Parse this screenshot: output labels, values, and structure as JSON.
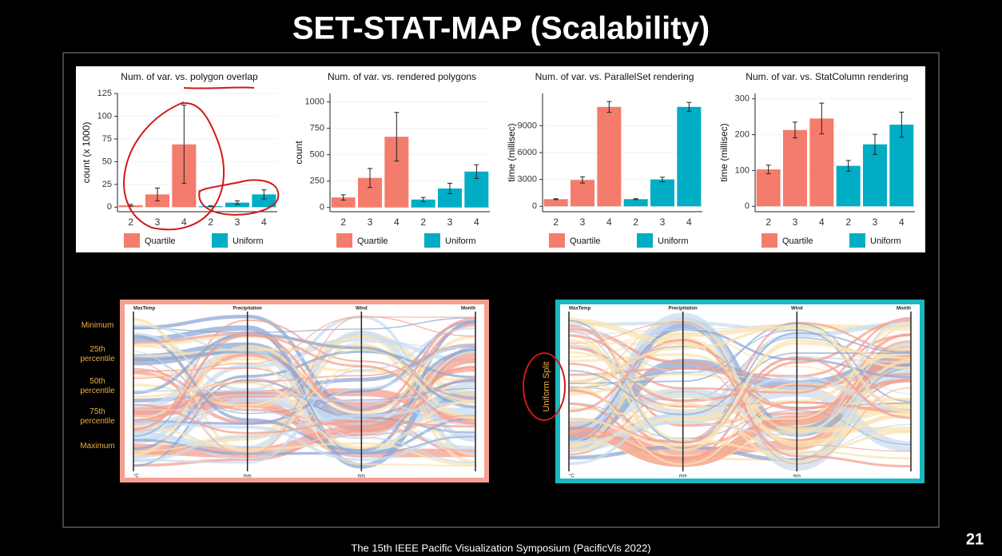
{
  "title": "SET-STAT-MAP (Scalability)",
  "footer": "The 15th IEEE Pacific Visualization Symposium (PacificVis 2022)",
  "page_number": "21",
  "chart_data": [
    {
      "type": "bar",
      "title": "Num. of var. vs. polygon overlap",
      "ylabel": "count (x 1000)",
      "categories": [
        "2",
        "3",
        "4"
      ],
      "ylim": [
        -5,
        125
      ],
      "yticks": [
        0,
        25,
        50,
        75,
        100,
        125
      ],
      "series": [
        {
          "name": "Quartile",
          "color": "#f47c6c",
          "values": [
            2,
            14,
            69
          ],
          "errors": [
            1,
            7,
            43
          ]
        },
        {
          "name": "Uniform",
          "color": "#00adc4",
          "values": [
            1,
            5,
            14
          ],
          "errors": [
            0.5,
            2,
            5
          ]
        }
      ]
    },
    {
      "type": "bar",
      "title": "Num. of var. vs. rendered polygons",
      "ylabel": "count",
      "categories": [
        "2",
        "3",
        "4"
      ],
      "ylim": [
        -40,
        1080
      ],
      "yticks": [
        0,
        250,
        500,
        750,
        1000
      ],
      "series": [
        {
          "name": "Quartile",
          "color": "#f47c6c",
          "values": [
            95,
            280,
            670
          ],
          "errors": [
            25,
            90,
            230
          ]
        },
        {
          "name": "Uniform",
          "color": "#00adc4",
          "values": [
            75,
            180,
            340
          ],
          "errors": [
            20,
            50,
            65
          ]
        }
      ]
    },
    {
      "type": "bar",
      "title": "Num. of var. vs. ParallelSet rendering",
      "ylabel": "time (millisec)",
      "categories": [
        "2",
        "3",
        "4"
      ],
      "ylim": [
        -600,
        12600
      ],
      "yticks": [
        0,
        3000,
        6000,
        9000
      ],
      "series": [
        {
          "name": "Quartile",
          "color": "#f47c6c",
          "values": [
            800,
            2950,
            11100
          ],
          "errors": [
            50,
            350,
            600
          ]
        },
        {
          "name": "Uniform",
          "color": "#00adc4",
          "values": [
            800,
            3000,
            11100
          ],
          "errors": [
            50,
            250,
            500
          ]
        }
      ]
    },
    {
      "type": "bar",
      "title": "Num. of var. vs. StatColumn rendering",
      "ylabel": "time (millisec)",
      "categories": [
        "2",
        "3",
        "4"
      ],
      "ylim": [
        -15,
        315
      ],
      "yticks": [
        0,
        100,
        200,
        300
      ],
      "series": [
        {
          "name": "Quartile",
          "color": "#f47c6c",
          "values": [
            103,
            213,
            245
          ],
          "errors": [
            12,
            22,
            43
          ]
        },
        {
          "name": "Uniform",
          "color": "#00adc4",
          "values": [
            113,
            173,
            228
          ],
          "errors": [
            15,
            28,
            35
          ]
        }
      ]
    }
  ],
  "parallel_sets": {
    "axes": [
      "MaxTemp",
      "Precipitation",
      "Wind",
      "Month"
    ],
    "units": [
      "°C",
      "mm",
      "m/s"
    ],
    "quartile_labels": [
      "Minimum",
      "25th percentile",
      "50th percentile",
      "75th percentile",
      "Maximum"
    ],
    "uniform_label": "Uniform Split"
  }
}
